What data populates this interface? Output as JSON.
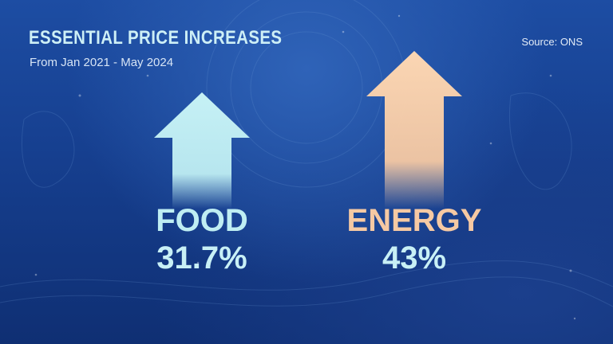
{
  "header": {
    "title": "ESSENTIAL PRICE INCREASES",
    "subtitle": "From Jan 2021 - May 2024",
    "source": "Source: ONS"
  },
  "colors": {
    "food": "#bfeef3",
    "energy": "#f6c9a3",
    "food_value": "#c8f0f6",
    "energy_value": "#c8f0f6"
  },
  "chart_data": {
    "type": "bar",
    "title": "ESSENTIAL PRICE INCREASES",
    "subtitle": "From Jan 2021 - May 2024",
    "categories": [
      "FOOD",
      "ENERGY"
    ],
    "values": [
      31.7,
      43
    ],
    "value_labels": [
      "31.7%",
      "43%"
    ],
    "unit": "%",
    "ylim": [
      0,
      43
    ],
    "grid": false,
    "legend": "none",
    "annotation": "Source: ONS"
  }
}
